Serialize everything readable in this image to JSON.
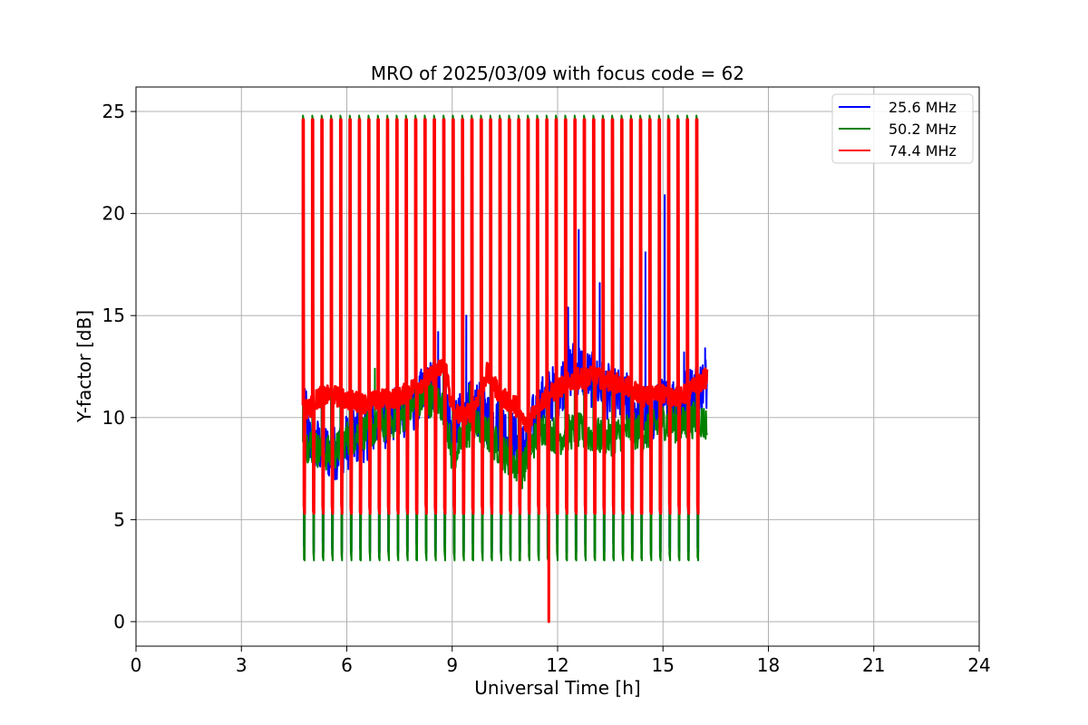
{
  "chart_data": {
    "type": "line",
    "title": "MRO of 2025/03/09 with focus code = 62",
    "xlabel": "Universal Time [h]",
    "ylabel": "Y-factor [dB]",
    "xlim": [
      0,
      24
    ],
    "ylim": [
      -1.2,
      26.2
    ],
    "xticks": [
      0,
      3,
      6,
      9,
      12,
      15,
      18,
      21,
      24
    ],
    "yticks": [
      0,
      5,
      10,
      15,
      20,
      25
    ],
    "grid": true,
    "legend_position": "top-right",
    "calibration": {
      "start_h": 4.75,
      "end_h": 16.05,
      "period_h": 0.2667,
      "high_db": 24.6,
      "low_db": 3.0
    },
    "series": [
      {
        "name": "25.6 MHz",
        "color": "#0000ff",
        "baseline": [
          [
            4.75,
            11.4
          ],
          [
            4.9,
            9.0
          ],
          [
            5.2,
            8.6
          ],
          [
            5.6,
            8.2
          ],
          [
            6.0,
            8.8
          ],
          [
            6.5,
            9.2
          ],
          [
            7.0,
            9.8
          ],
          [
            7.5,
            10.2
          ],
          [
            8.0,
            10.8
          ],
          [
            8.5,
            11.6
          ],
          [
            8.8,
            11.0
          ],
          [
            9.0,
            9.0
          ],
          [
            9.2,
            9.8
          ],
          [
            9.6,
            10.6
          ],
          [
            10.0,
            10.0
          ],
          [
            10.5,
            9.4
          ],
          [
            11.0,
            8.4
          ],
          [
            11.3,
            9.8
          ],
          [
            11.6,
            10.8
          ],
          [
            12.0,
            11.4
          ],
          [
            12.5,
            12.6
          ],
          [
            13.0,
            11.8
          ],
          [
            13.5,
            11.2
          ],
          [
            14.0,
            10.8
          ],
          [
            14.5,
            9.8
          ],
          [
            15.0,
            10.6
          ],
          [
            15.5,
            10.9
          ],
          [
            16.0,
            11.4
          ],
          [
            16.25,
            11.8
          ]
        ],
        "spikes": [
          [
            8.6,
            14.2
          ],
          [
            9.4,
            15.0
          ],
          [
            12.3,
            15.4
          ],
          [
            12.6,
            19.2
          ],
          [
            13.2,
            16.6
          ],
          [
            13.8,
            17.3
          ],
          [
            14.5,
            18.1
          ],
          [
            15.05,
            20.9
          ],
          [
            15.6,
            13.2
          ],
          [
            16.2,
            13.4
          ]
        ]
      },
      {
        "name": "50.2 MHz",
        "color": "#008000",
        "baseline": [
          [
            4.75,
            8.8
          ],
          [
            5.0,
            8.6
          ],
          [
            5.3,
            8.3
          ],
          [
            5.6,
            8.2
          ],
          [
            6.0,
            9.0
          ],
          [
            6.5,
            9.3
          ],
          [
            7.0,
            9.6
          ],
          [
            7.5,
            10.0
          ],
          [
            8.0,
            10.6
          ],
          [
            8.5,
            11.0
          ],
          [
            8.8,
            10.4
          ],
          [
            9.0,
            8.0
          ],
          [
            9.3,
            9.0
          ],
          [
            9.6,
            9.6
          ],
          [
            10.0,
            9.2
          ],
          [
            10.5,
            8.2
          ],
          [
            11.0,
            7.4
          ],
          [
            11.3,
            8.8
          ],
          [
            11.6,
            9.6
          ],
          [
            12.0,
            9.0
          ],
          [
            12.5,
            9.4
          ],
          [
            13.0,
            9.1
          ],
          [
            13.5,
            9.0
          ],
          [
            14.0,
            9.4
          ],
          [
            14.5,
            9.2
          ],
          [
            15.0,
            9.8
          ],
          [
            15.5,
            9.6
          ],
          [
            16.0,
            10.0
          ],
          [
            16.25,
            9.6
          ]
        ],
        "spikes": [
          [
            6.8,
            12.4
          ],
          [
            8.3,
            12.2
          ],
          [
            9.5,
            11.6
          ]
        ]
      },
      {
        "name": "74.4 MHz",
        "color": "#ff0000",
        "baseline": [
          [
            4.75,
            10.6
          ],
          [
            4.9,
            10.4
          ],
          [
            5.2,
            11.0
          ],
          [
            5.6,
            11.1
          ],
          [
            6.0,
            10.9
          ],
          [
            6.5,
            10.7
          ],
          [
            7.0,
            10.9
          ],
          [
            7.5,
            11.0
          ],
          [
            8.0,
            11.6
          ],
          [
            8.4,
            12.0
          ],
          [
            8.8,
            12.6
          ],
          [
            9.0,
            10.4
          ],
          [
            9.3,
            10.0
          ],
          [
            9.6,
            10.4
          ],
          [
            10.0,
            12.2
          ],
          [
            10.4,
            11.0
          ],
          [
            10.8,
            10.6
          ],
          [
            11.1,
            9.6
          ],
          [
            11.4,
            10.6
          ],
          [
            11.7,
            11.0
          ],
          [
            12.0,
            11.4
          ],
          [
            12.5,
            11.9
          ],
          [
            13.0,
            12.0
          ],
          [
            13.5,
            11.8
          ],
          [
            14.0,
            11.5
          ],
          [
            14.5,
            11.0
          ],
          [
            15.0,
            11.2
          ],
          [
            15.5,
            11.0
          ],
          [
            16.0,
            11.6
          ],
          [
            16.25,
            12.0
          ]
        ],
        "spikes": [
          [
            11.75,
            0.0
          ]
        ]
      }
    ]
  }
}
